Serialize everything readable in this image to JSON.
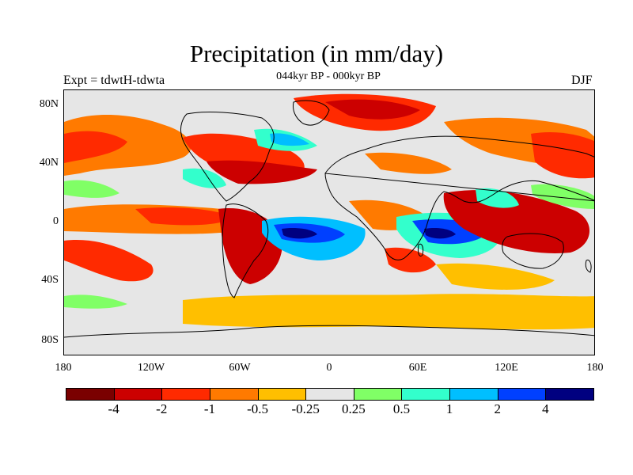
{
  "title": "Precipitation (in mm/day)",
  "subtitle": "044kyr BP - 000kyr BP",
  "left_label": "Expt = tdwtH-tdwta",
  "right_label": "DJF",
  "lat_labels": [
    "80N",
    "40N",
    "0",
    "40S",
    "80S"
  ],
  "lon_labels": [
    "180",
    "120W",
    "60W",
    "0",
    "60E",
    "120E",
    "180"
  ],
  "colorbar": {
    "colors": [
      "#7a0000",
      "#cc0000",
      "#ff2a00",
      "#ff7a00",
      "#ffbf00",
      "#e6e6e6",
      "#80ff66",
      "#33ffcc",
      "#00bfff",
      "#0040ff",
      "#000080"
    ],
    "labels": [
      "-4",
      "-2",
      "-1",
      "-0.5",
      "-0.25",
      "0.25",
      "0.5",
      "1",
      "2",
      "4"
    ]
  },
  "colors": {
    "background": "#e6e6e6",
    "land_outline": "#000000"
  }
}
